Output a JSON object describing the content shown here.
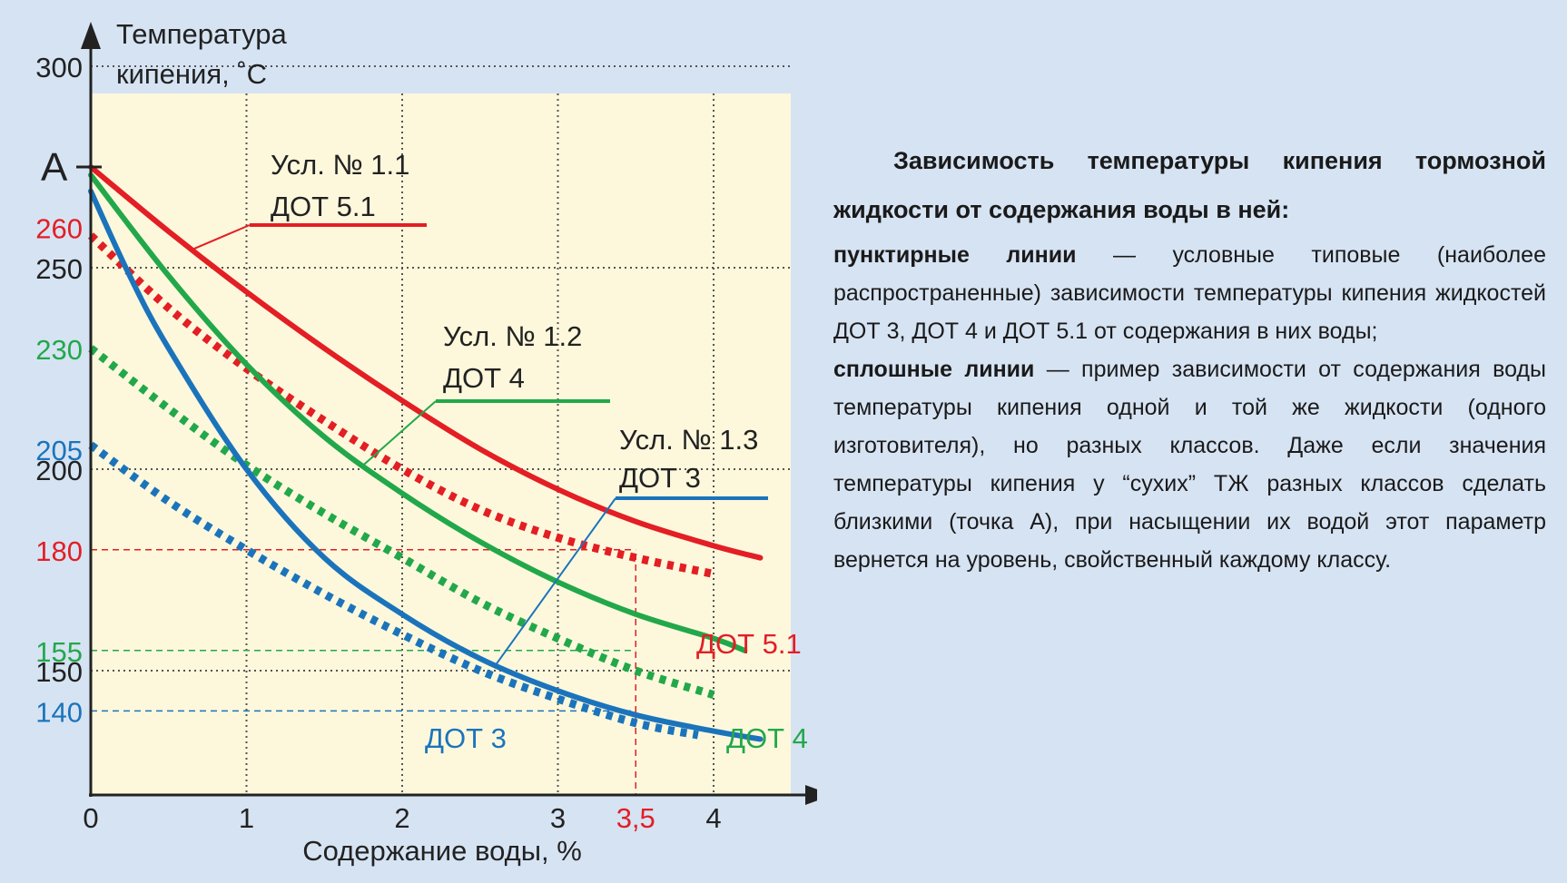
{
  "chart_data": {
    "type": "line",
    "ylabel": [
      "Температура",
      "кипения, ˚C"
    ],
    "xlabel": "Содержание воды, %",
    "x_ticks": [
      "0",
      "1",
      "2",
      "3",
      "4"
    ],
    "y_ticks": [
      "300",
      "250",
      "200",
      "150"
    ],
    "xlim": [
      0,
      4.5
    ],
    "ylim": [
      130,
      305
    ],
    "grid": true,
    "point_a": {
      "label": "A",
      "y": 275
    },
    "marker": {
      "x": 3.5,
      "x_label": "3,5",
      "levels": [
        {
          "y": 180,
          "label": "180",
          "series": "ДОТ 5.1"
        },
        {
          "y": 155,
          "label": "155",
          "series": "ДОТ 4"
        },
        {
          "y": 140,
          "label": "140",
          "series": "ДОТ 3"
        }
      ]
    },
    "series": [
      {
        "name": "ДОТ 5.1",
        "style": "solid",
        "color": "#e31e24",
        "x": [
          0,
          0.5,
          1,
          1.5,
          2,
          2.5,
          3,
          3.5,
          4,
          4.3
        ],
        "y": [
          275,
          259,
          244,
          230,
          217,
          205,
          195,
          187,
          181,
          178
        ]
      },
      {
        "name": "ДОТ 4",
        "style": "solid",
        "color": "#22a84a",
        "x": [
          0,
          0.5,
          1,
          1.5,
          2,
          2.5,
          3,
          3.5,
          4,
          4.2
        ],
        "y": [
          273,
          248,
          226,
          208,
          194,
          182,
          172,
          164,
          158,
          155
        ]
      },
      {
        "name": "ДОТ 3",
        "style": "solid",
        "color": "#1b74bb",
        "x": [
          0,
          0.25,
          0.5,
          1,
          1.5,
          2,
          2.5,
          3,
          3.5,
          4,
          4.3
        ],
        "y": [
          269,
          248,
          230,
          200,
          178,
          164,
          153,
          145,
          139,
          135,
          133
        ]
      },
      {
        "name": "ДОТ 5.1",
        "style": "dotted",
        "color": "#e31e24",
        "x": [
          0,
          0.5,
          1,
          1.5,
          2,
          2.5,
          3,
          3.5,
          4
        ],
        "y": [
          258,
          240,
          225,
          212,
          200,
          190,
          183,
          178,
          174
        ]
      },
      {
        "name": "ДОТ 4",
        "style": "dotted",
        "color": "#22a84a",
        "x": [
          0,
          0.5,
          1,
          1.5,
          2,
          2.5,
          3,
          3.5,
          4
        ],
        "y": [
          230,
          215,
          201,
          189,
          178,
          167,
          158,
          150,
          144
        ]
      },
      {
        "name": "ДОТ 3",
        "style": "dotted",
        "color": "#1b74bb",
        "x": [
          0,
          0.5,
          1,
          1.5,
          2,
          2.5,
          3,
          3.5,
          3.9
        ],
        "y": [
          206,
          192,
          180,
          169,
          159,
          150,
          143,
          137,
          134
        ]
      }
    ],
    "y_side_labels": [
      {
        "y": 260,
        "text": "260",
        "color": "#e31e24"
      },
      {
        "y": 230,
        "text": "230",
        "color": "#22a84a"
      },
      {
        "y": 205,
        "text": "205",
        "color": "#1b74bb"
      },
      {
        "y": 180,
        "text": "180",
        "color": "#e31e24"
      },
      {
        "y": 155,
        "text": "155",
        "color": "#22a84a"
      },
      {
        "y": 140,
        "text": "140",
        "color": "#1b74bb"
      }
    ],
    "callouts": [
      {
        "lines": [
          "Усл. № 1.1",
          "ДОТ 5.1"
        ],
        "color": "#e31e24",
        "series": 0,
        "at_x": 0.65
      },
      {
        "lines": [
          "Усл. № 1.2",
          "ДОТ 4"
        ],
        "color": "#22a84a",
        "series": 1,
        "at_x": 1.75
      },
      {
        "lines": [
          "Усл. № 1.3",
          "ДОТ 3"
        ],
        "color": "#1b74bb",
        "series": 2,
        "at_x": 2.6
      }
    ],
    "end_labels": [
      {
        "text": "ДОТ 5.1",
        "color": "#e31e24"
      },
      {
        "text": "ДОТ 4",
        "color": "#22a84a"
      },
      {
        "text": "ДОТ 3",
        "color": "#1b74bb"
      }
    ]
  },
  "caption": {
    "title": "Зависимость температуры кипения тормозной жидкости от содержания воды в ней:",
    "p1_bold": "пунктирные линии",
    "p1_text": " — условные типовые (наиболее распространенные) зависимости температуры кипения жидкостей ДОТ 3, ДОТ 4 и ДОТ 5.1 от содержания в них воды;",
    "p2_bold": "сплошные линии",
    "p2_text": " — пример зависимости от содержания воды температуры кипения одной и той же жидкости (одного изготовителя), но разных классов. Даже если значения температуры кипения у “сухих” ТЖ разных классов сделать близкими (точка А), при насыщении их водой этот параметр вернется на уровень, свойственный каждому классу."
  },
  "colors": {
    "background": "#d6e3f3",
    "plot_area": "#fdf8dc",
    "red": "#e31e24",
    "green": "#22a84a",
    "blue": "#1b74bb"
  }
}
